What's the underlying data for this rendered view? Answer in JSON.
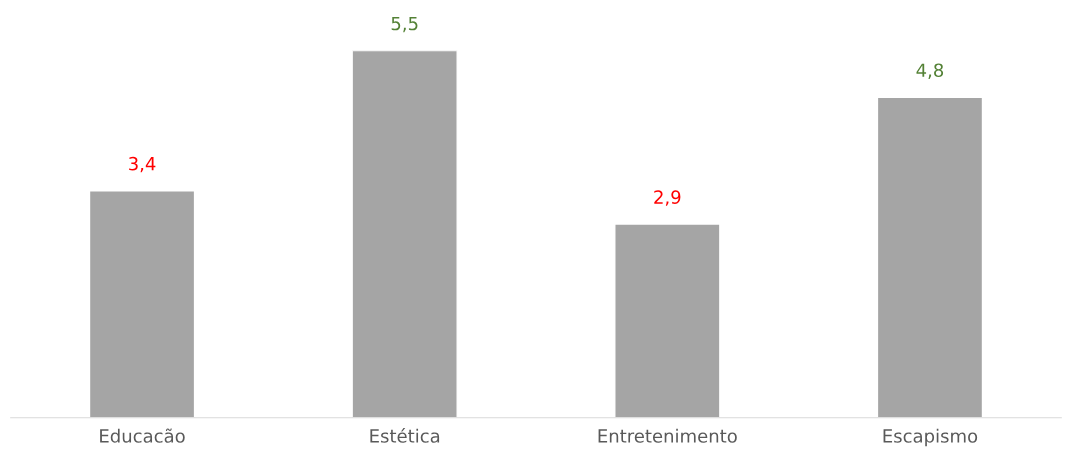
{
  "chart_data": {
    "type": "bar",
    "categories": [
      "Educacão",
      "Estética",
      "Entretenimento",
      "Escapismo"
    ],
    "values": [
      3.4,
      5.5,
      2.9,
      4.8
    ],
    "color": "#a5a5a5",
    "value_labels": [
      "3,4",
      "5,5",
      "2,9",
      "4,8"
    ],
    "tick_labels": "x",
    "grid": false,
    "legend": false
  }
}
